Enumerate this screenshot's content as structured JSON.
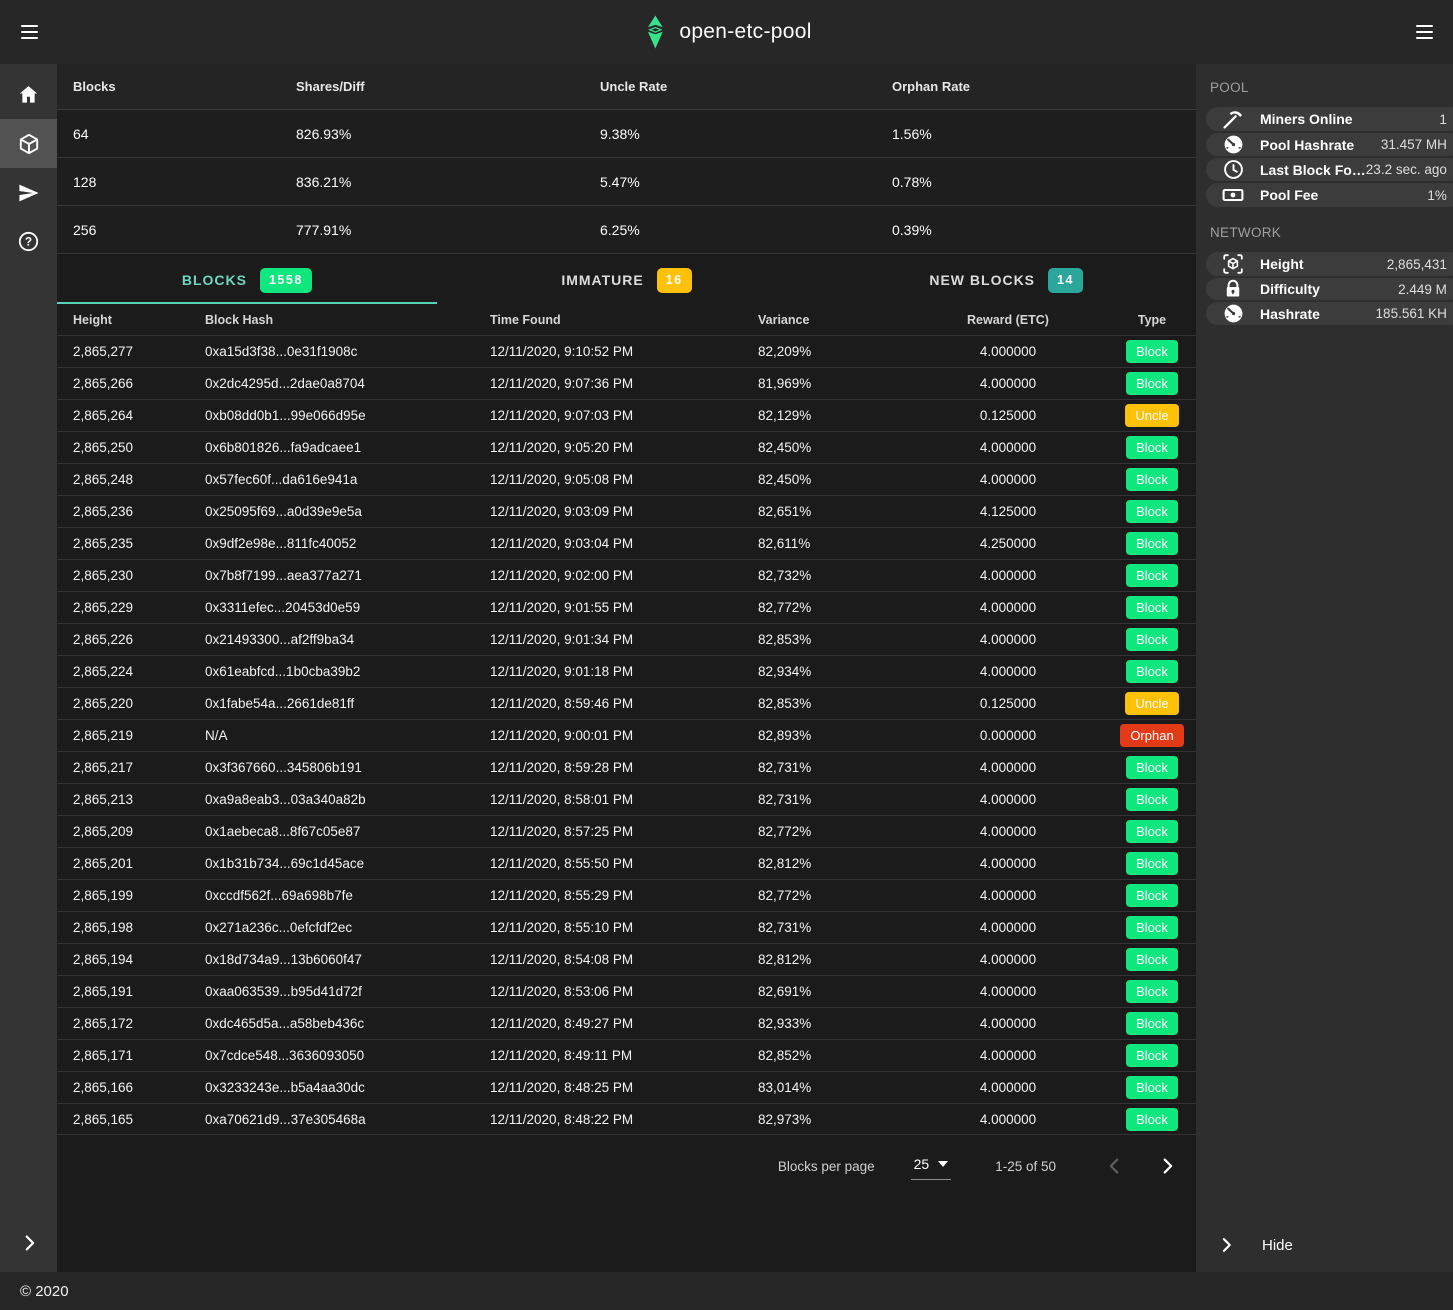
{
  "colors": {
    "accent_green": "#0ee67e",
    "amber": "#fdc107",
    "teal_badge": "#2aa79a",
    "red_orphan": "#e23a17",
    "tab_active_text": "#6fd6bd",
    "tab_underline": "#55d1b5",
    "logo_green": "#36e28e"
  },
  "header": {
    "title": "open-etc-pool"
  },
  "left_nav": {
    "items": [
      {
        "id": "home",
        "icon": "home-icon",
        "active": false
      },
      {
        "id": "blocks",
        "icon": "cube-icon",
        "active": true
      },
      {
        "id": "payments",
        "icon": "send-icon",
        "active": false
      },
      {
        "id": "help",
        "icon": "help-icon",
        "active": false
      }
    ]
  },
  "stats_table": {
    "headers": [
      "Blocks",
      "Shares/Diff",
      "Uncle Rate",
      "Orphan Rate"
    ],
    "rows": [
      [
        "64",
        "826.93%",
        "9.38%",
        "1.56%"
      ],
      [
        "128",
        "836.21%",
        "5.47%",
        "0.78%"
      ],
      [
        "256",
        "777.91%",
        "6.25%",
        "0.39%"
      ]
    ]
  },
  "tabs": [
    {
      "label": "BLOCKS",
      "badge": "1558",
      "badge_color": "#0ee67e",
      "active": true
    },
    {
      "label": "IMMATURE",
      "badge": "16",
      "badge_color": "#fdc107",
      "active": false
    },
    {
      "label": "NEW BLOCKS",
      "badge": "14",
      "badge_color": "#2aa79a",
      "active": false
    }
  ],
  "blocks_table": {
    "headers": [
      "Height",
      "Block Hash",
      "Time Found",
      "Variance",
      "Reward (ETC)",
      "Type"
    ],
    "rows": [
      {
        "height": "2,865,277",
        "hash": "0xa15d3f38...0e31f1908c",
        "time": "12/11/2020, 9:10:52 PM",
        "variance": "82,209%",
        "reward": "4.000000",
        "type": "Block"
      },
      {
        "height": "2,865,266",
        "hash": "0x2dc4295d...2dae0a8704",
        "time": "12/11/2020, 9:07:36 PM",
        "variance": "81,969%",
        "reward": "4.000000",
        "type": "Block"
      },
      {
        "height": "2,865,264",
        "hash": "0xb08dd0b1...99e066d95e",
        "time": "12/11/2020, 9:07:03 PM",
        "variance": "82,129%",
        "reward": "0.125000",
        "type": "Uncle"
      },
      {
        "height": "2,865,250",
        "hash": "0x6b801826...fa9adcaee1",
        "time": "12/11/2020, 9:05:20 PM",
        "variance": "82,450%",
        "reward": "4.000000",
        "type": "Block"
      },
      {
        "height": "2,865,248",
        "hash": "0x57fec60f...da616e941a",
        "time": "12/11/2020, 9:05:08 PM",
        "variance": "82,450%",
        "reward": "4.000000",
        "type": "Block"
      },
      {
        "height": "2,865,236",
        "hash": "0x25095f69...a0d39e9e5a",
        "time": "12/11/2020, 9:03:09 PM",
        "variance": "82,651%",
        "reward": "4.125000",
        "type": "Block"
      },
      {
        "height": "2,865,235",
        "hash": "0x9df2e98e...811fc40052",
        "time": "12/11/2020, 9:03:04 PM",
        "variance": "82,611%",
        "reward": "4.250000",
        "type": "Block"
      },
      {
        "height": "2,865,230",
        "hash": "0x7b8f7199...aea377a271",
        "time": "12/11/2020, 9:02:00 PM",
        "variance": "82,732%",
        "reward": "4.000000",
        "type": "Block"
      },
      {
        "height": "2,865,229",
        "hash": "0x3311efec...20453d0e59",
        "time": "12/11/2020, 9:01:55 PM",
        "variance": "82,772%",
        "reward": "4.000000",
        "type": "Block"
      },
      {
        "height": "2,865,226",
        "hash": "0x21493300...af2ff9ba34",
        "time": "12/11/2020, 9:01:34 PM",
        "variance": "82,853%",
        "reward": "4.000000",
        "type": "Block"
      },
      {
        "height": "2,865,224",
        "hash": "0x61eabfcd...1b0cba39b2",
        "time": "12/11/2020, 9:01:18 PM",
        "variance": "82,934%",
        "reward": "4.000000",
        "type": "Block"
      },
      {
        "height": "2,865,220",
        "hash": "0x1fabe54a...2661de81ff",
        "time": "12/11/2020, 8:59:46 PM",
        "variance": "82,853%",
        "reward": "0.125000",
        "type": "Uncle"
      },
      {
        "height": "2,865,219",
        "hash": "N/A",
        "time": "12/11/2020, 9:00:01 PM",
        "variance": "82,893%",
        "reward": "0.000000",
        "type": "Orphan"
      },
      {
        "height": "2,865,217",
        "hash": "0x3f367660...345806b191",
        "time": "12/11/2020, 8:59:28 PM",
        "variance": "82,731%",
        "reward": "4.000000",
        "type": "Block"
      },
      {
        "height": "2,865,213",
        "hash": "0xa9a8eab3...03a340a82b",
        "time": "12/11/2020, 8:58:01 PM",
        "variance": "82,731%",
        "reward": "4.000000",
        "type": "Block"
      },
      {
        "height": "2,865,209",
        "hash": "0x1aebeca8...8f67c05e87",
        "time": "12/11/2020, 8:57:25 PM",
        "variance": "82,772%",
        "reward": "4.000000",
        "type": "Block"
      },
      {
        "height": "2,865,201",
        "hash": "0x1b31b734...69c1d45ace",
        "time": "12/11/2020, 8:55:50 PM",
        "variance": "82,812%",
        "reward": "4.000000",
        "type": "Block"
      },
      {
        "height": "2,865,199",
        "hash": "0xccdf562f...69a698b7fe",
        "time": "12/11/2020, 8:55:29 PM",
        "variance": "82,772%",
        "reward": "4.000000",
        "type": "Block"
      },
      {
        "height": "2,865,198",
        "hash": "0x271a236c...0efcfdf2ec",
        "time": "12/11/2020, 8:55:10 PM",
        "variance": "82,731%",
        "reward": "4.000000",
        "type": "Block"
      },
      {
        "height": "2,865,194",
        "hash": "0x18d734a9...13b6060f47",
        "time": "12/11/2020, 8:54:08 PM",
        "variance": "82,812%",
        "reward": "4.000000",
        "type": "Block"
      },
      {
        "height": "2,865,191",
        "hash": "0xaa063539...b95d41d72f",
        "time": "12/11/2020, 8:53:06 PM",
        "variance": "82,691%",
        "reward": "4.000000",
        "type": "Block"
      },
      {
        "height": "2,865,172",
        "hash": "0xdc465d5a...a58beb436c",
        "time": "12/11/2020, 8:49:27 PM",
        "variance": "82,933%",
        "reward": "4.000000",
        "type": "Block"
      },
      {
        "height": "2,865,171",
        "hash": "0x7cdce548...3636093050",
        "time": "12/11/2020, 8:49:11 PM",
        "variance": "82,852%",
        "reward": "4.000000",
        "type": "Block"
      },
      {
        "height": "2,865,166",
        "hash": "0x3233243e...b5a4aa30dc",
        "time": "12/11/2020, 8:48:25 PM",
        "variance": "83,014%",
        "reward": "4.000000",
        "type": "Block"
      },
      {
        "height": "2,865,165",
        "hash": "0xa70621d9...37e305468a",
        "time": "12/11/2020, 8:48:22 PM",
        "variance": "82,973%",
        "reward": "4.000000",
        "type": "Block"
      }
    ]
  },
  "pagination": {
    "label": "Blocks per page",
    "page_size": "25",
    "range": "1-25 of 50"
  },
  "right_sidebar": {
    "sections": [
      {
        "title": "POOL",
        "items": [
          {
            "icon": "pickaxe-icon",
            "label": "Miners Online",
            "value": "1"
          },
          {
            "icon": "gauge-icon",
            "label": "Pool Hashrate",
            "value": "31.457 MH"
          },
          {
            "icon": "clock-icon",
            "label": "Last Block Fo…",
            "value": "23.2 sec. ago"
          },
          {
            "icon": "cash-icon",
            "label": "Pool Fee",
            "value": "1%"
          }
        ]
      },
      {
        "title": "NETWORK",
        "items": [
          {
            "icon": "cube-scan-icon",
            "label": "Height",
            "value": "2,865,431"
          },
          {
            "icon": "lock-icon",
            "label": "Difficulty",
            "value": "2.449 M"
          },
          {
            "icon": "gauge-icon",
            "label": "Hashrate",
            "value": "185.561 KH"
          }
        ]
      }
    ],
    "hide_label": "Hide"
  },
  "footer": {
    "copyright": "© 2020"
  }
}
